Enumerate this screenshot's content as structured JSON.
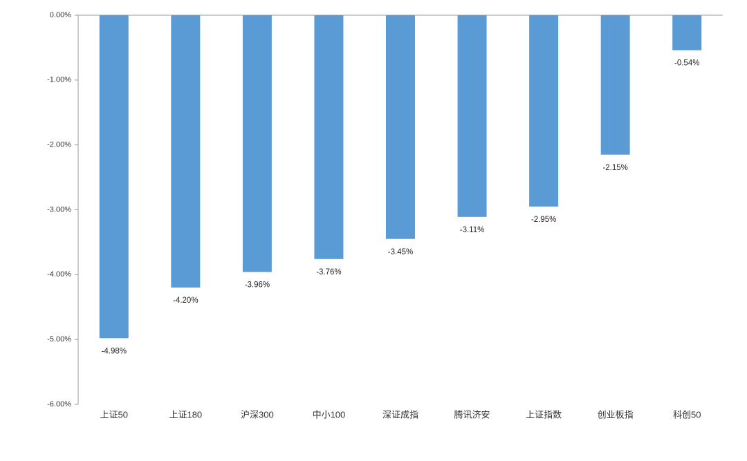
{
  "chart_data": {
    "type": "bar",
    "categories": [
      "上证50",
      "上证180",
      "沪深300",
      "中小100",
      "深证成指",
      "腾讯济安",
      "上证指数",
      "创业板指",
      "科创50"
    ],
    "values": [
      -4.98,
      -4.2,
      -3.96,
      -3.76,
      -3.45,
      -3.11,
      -2.95,
      -2.15,
      -0.54
    ],
    "value_labels": [
      "-4.98%",
      "-4.20%",
      "-3.96%",
      "-3.76%",
      "-3.45%",
      "-3.11%",
      "-2.95%",
      "-2.15%",
      "-0.54%"
    ],
    "color": "#5b9bd5",
    "ylim": [
      -6,
      0
    ],
    "yticks": [
      {
        "value": 0,
        "label": "0.00%"
      },
      {
        "value": -1,
        "label": "-1.00%"
      },
      {
        "value": -2,
        "label": "-2.00%"
      },
      {
        "value": -3,
        "label": "-3.00%"
      },
      {
        "value": -4,
        "label": "-4.00%"
      },
      {
        "value": -5,
        "label": "-5.00%"
      },
      {
        "value": -6,
        "label": "-6.00%"
      }
    ],
    "grid": false
  }
}
